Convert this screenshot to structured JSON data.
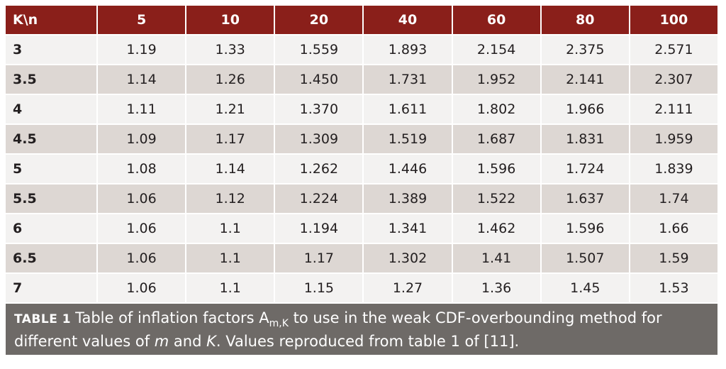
{
  "table": {
    "corner_header": "K\\n",
    "columns": [
      "5",
      "10",
      "20",
      "40",
      "60",
      "80",
      "100"
    ],
    "rows": [
      {
        "k": "3",
        "values": [
          "1.19",
          "1.33",
          "1.559",
          "1.893",
          "2.154",
          "2.375",
          "2.571"
        ]
      },
      {
        "k": "3.5",
        "values": [
          "1.14",
          "1.26",
          "1.450",
          "1.731",
          "1.952",
          "2.141",
          "2.307"
        ]
      },
      {
        "k": "4",
        "values": [
          "1.11",
          "1.21",
          "1.370",
          "1.611",
          "1.802",
          "1.966",
          "2.111"
        ]
      },
      {
        "k": "4.5",
        "values": [
          "1.09",
          "1.17",
          "1.309",
          "1.519",
          "1.687",
          "1.831",
          "1.959"
        ]
      },
      {
        "k": "5",
        "values": [
          "1.08",
          "1.14",
          "1.262",
          "1.446",
          "1.596",
          "1.724",
          "1.839"
        ]
      },
      {
        "k": "5.5",
        "values": [
          "1.06",
          "1.12",
          "1.224",
          "1.389",
          "1.522",
          "1.637",
          "1.74"
        ]
      },
      {
        "k": "6",
        "values": [
          "1.06",
          "1.1",
          "1.194",
          "1.341",
          "1.462",
          "1.596",
          "1.66"
        ]
      },
      {
        "k": "6.5",
        "values": [
          "1.06",
          "1.1",
          "1.17",
          "1.302",
          "1.41",
          "1.507",
          "1.59"
        ]
      },
      {
        "k": "7",
        "values": [
          "1.06",
          "1.1",
          "1.15",
          "1.27",
          "1.36",
          "1.45",
          "1.53"
        ]
      }
    ]
  },
  "caption": {
    "label": "TABLE 1",
    "text_1": "Table of inflation factors A",
    "subscript": "m,K",
    "text_2": " to use in the weak CDF-overbounding method for different values of ",
    "m": "m",
    "text_3": " and ",
    "K": "K",
    "text_4": ". Values reproduced from table 1 of [11]."
  },
  "colors": {
    "header_bg": "#8a1f1a",
    "row_light": "#f3f2f1",
    "row_dark": "#ddd7d3",
    "caption_bg": "#6e6a67"
  }
}
